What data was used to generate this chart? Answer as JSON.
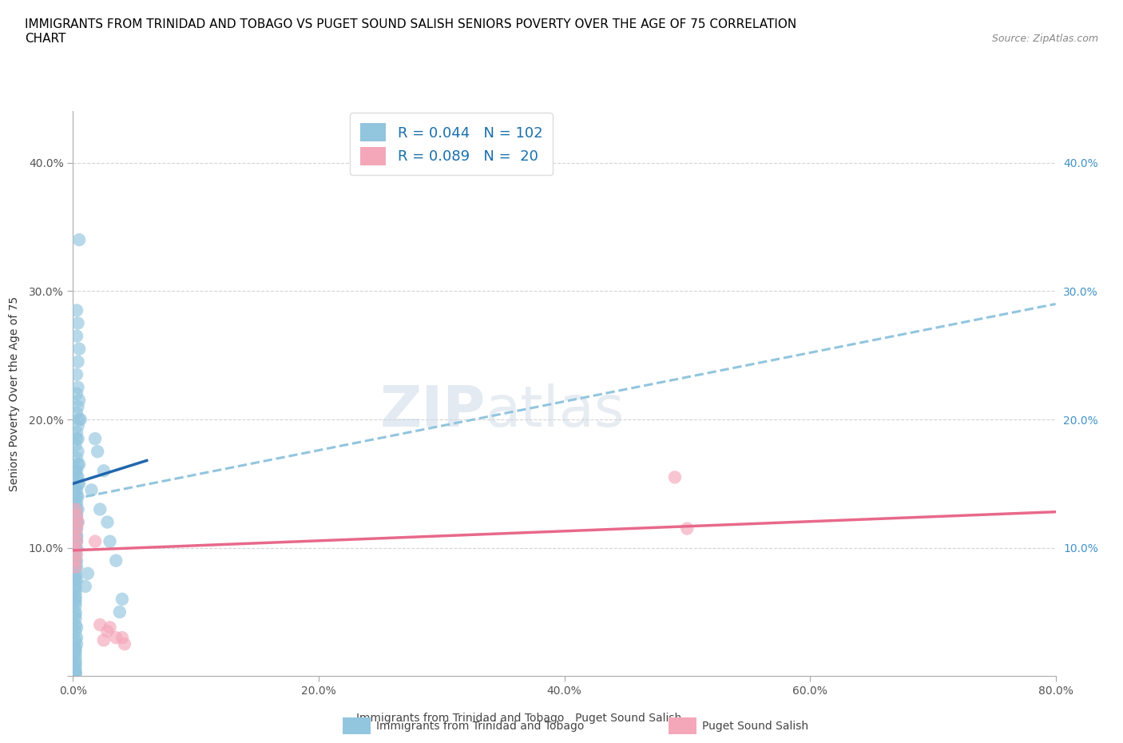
{
  "title": "IMMIGRANTS FROM TRINIDAD AND TOBAGO VS PUGET SOUND SALISH SENIORS POVERTY OVER THE AGE OF 75 CORRELATION\nCHART",
  "source_text": "Source: ZipAtlas.com",
  "ylabel": "Seniors Poverty Over the Age of 75",
  "xlim": [
    0.0,
    0.8
  ],
  "ylim": [
    0.0,
    0.44
  ],
  "xticks": [
    0.0,
    0.2,
    0.4,
    0.6,
    0.8
  ],
  "xtick_labels": [
    "0.0%",
    "20.0%",
    "40.0%",
    "60.0%",
    "80.0%"
  ],
  "yticks": [
    0.0,
    0.1,
    0.2,
    0.3,
    0.4
  ],
  "ytick_labels": [
    "",
    "10.0%",
    "20.0%",
    "30.0%",
    "40.0%"
  ],
  "right_ytick_labels": [
    "10.0%",
    "20.0%",
    "30.0%",
    "40.0%"
  ],
  "right_yticks": [
    0.1,
    0.2,
    0.3,
    0.4
  ],
  "watermark_zip": "ZIP",
  "watermark_atlas": "atlas",
  "legend_r1": "R = 0.044",
  "legend_n1": "N = 102",
  "legend_r2": "R = 0.089",
  "legend_n2": "N =  20",
  "blue_color": "#92c5de",
  "pink_color": "#f4a7b9",
  "blue_line_color": "#2166ac",
  "dashed_line_color": "#92c5de",
  "pink_line_color": "#e8698a",
  "grid_color": "#c8c8c8",
  "blue_scatter_x": [
    0.005,
    0.003,
    0.004,
    0.003,
    0.005,
    0.004,
    0.003,
    0.004,
    0.003,
    0.005,
    0.004,
    0.003,
    0.006,
    0.005,
    0.004,
    0.003,
    0.004,
    0.003,
    0.002,
    0.004,
    0.003,
    0.005,
    0.004,
    0.003,
    0.002,
    0.004,
    0.003,
    0.005,
    0.004,
    0.003,
    0.002,
    0.003,
    0.004,
    0.003,
    0.002,
    0.003,
    0.004,
    0.002,
    0.003,
    0.002,
    0.002,
    0.003,
    0.004,
    0.003,
    0.002,
    0.003,
    0.002,
    0.003,
    0.002,
    0.003,
    0.002,
    0.003,
    0.002,
    0.002,
    0.002,
    0.003,
    0.002,
    0.002,
    0.003,
    0.002,
    0.002,
    0.003,
    0.002,
    0.002,
    0.002,
    0.002,
    0.002,
    0.002,
    0.002,
    0.002,
    0.002,
    0.002,
    0.002,
    0.002,
    0.003,
    0.002,
    0.003,
    0.002,
    0.003,
    0.002,
    0.002,
    0.002,
    0.002,
    0.002,
    0.002,
    0.002,
    0.002,
    0.002,
    0.002,
    0.002,
    0.02,
    0.018,
    0.015,
    0.025,
    0.022,
    0.028,
    0.03,
    0.035,
    0.012,
    0.01,
    0.04,
    0.038
  ],
  "blue_scatter_y": [
    0.34,
    0.285,
    0.275,
    0.265,
    0.255,
    0.245,
    0.235,
    0.225,
    0.22,
    0.215,
    0.21,
    0.205,
    0.2,
    0.2,
    0.195,
    0.19,
    0.185,
    0.185,
    0.18,
    0.175,
    0.17,
    0.165,
    0.165,
    0.16,
    0.16,
    0.155,
    0.155,
    0.15,
    0.15,
    0.145,
    0.145,
    0.14,
    0.14,
    0.135,
    0.135,
    0.13,
    0.13,
    0.13,
    0.125,
    0.125,
    0.12,
    0.12,
    0.12,
    0.115,
    0.115,
    0.11,
    0.11,
    0.108,
    0.105,
    0.105,
    0.1,
    0.1,
    0.098,
    0.095,
    0.09,
    0.09,
    0.088,
    0.085,
    0.085,
    0.08,
    0.078,
    0.075,
    0.075,
    0.07,
    0.068,
    0.065,
    0.062,
    0.06,
    0.058,
    0.055,
    0.05,
    0.048,
    0.045,
    0.04,
    0.038,
    0.035,
    0.03,
    0.028,
    0.025,
    0.022,
    0.02,
    0.018,
    0.015,
    0.012,
    0.01,
    0.008,
    0.005,
    0.003,
    0.002,
    0.002,
    0.175,
    0.185,
    0.145,
    0.16,
    0.13,
    0.12,
    0.105,
    0.09,
    0.08,
    0.07,
    0.06,
    0.05
  ],
  "pink_scatter_x": [
    0.002,
    0.003,
    0.004,
    0.003,
    0.002,
    0.003,
    0.002,
    0.003,
    0.002,
    0.002,
    0.018,
    0.025,
    0.022,
    0.03,
    0.028,
    0.035,
    0.49,
    0.5,
    0.04,
    0.042
  ],
  "pink_scatter_y": [
    0.13,
    0.125,
    0.12,
    0.115,
    0.11,
    0.105,
    0.1,
    0.095,
    0.09,
    0.085,
    0.105,
    0.028,
    0.04,
    0.038,
    0.035,
    0.03,
    0.155,
    0.115,
    0.03,
    0.025
  ],
  "blue_trend_start_x": 0.0,
  "blue_trend_start_y": 0.15,
  "blue_trend_end_x": 0.06,
  "blue_trend_end_y": 0.168,
  "dashed_trend_start_x": 0.0,
  "dashed_trend_start_y": 0.138,
  "dashed_trend_end_x": 0.8,
  "dashed_trend_end_y": 0.29,
  "pink_trend_start_x": 0.0,
  "pink_trend_start_y": 0.098,
  "pink_trend_end_x": 0.8,
  "pink_trend_end_y": 0.128
}
